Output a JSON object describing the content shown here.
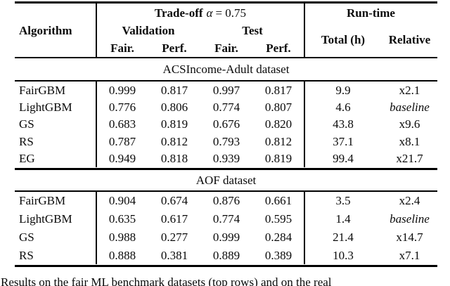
{
  "table": {
    "header": {
      "algorithm": "Algorithm",
      "tradeoff_label": "Trade-off",
      "alpha_symbol": "α",
      "alpha_eq": "= 0.75",
      "validation": "Validation",
      "test": "Test",
      "val_fair": "Fair.",
      "val_perf": "Perf.",
      "test_fair": "Fair.",
      "test_perf": "Perf.",
      "runtime": "Run-time",
      "total": "Total (h)",
      "relative": "Relative"
    },
    "sections": [
      {
        "title": "ACSIncome-Adult dataset",
        "rows": [
          {
            "algorithm": "FairGBM",
            "val_fair": "0.999",
            "val_perf": "0.817",
            "test_fair": "0.997",
            "test_perf": "0.817",
            "total_h": "9.9",
            "relative": "x2.1"
          },
          {
            "algorithm": "LightGBM",
            "val_fair": "0.776",
            "val_perf": "0.806",
            "test_fair": "0.774",
            "test_perf": "0.807",
            "total_h": "4.6",
            "relative": "baseline"
          },
          {
            "algorithm": "GS",
            "val_fair": "0.683",
            "val_perf": "0.819",
            "test_fair": "0.676",
            "test_perf": "0.820",
            "total_h": "43.8",
            "relative": "x9.6"
          },
          {
            "algorithm": "RS",
            "val_fair": "0.787",
            "val_perf": "0.812",
            "test_fair": "0.793",
            "test_perf": "0.812",
            "total_h": "37.1",
            "relative": "x8.1"
          },
          {
            "algorithm": "EG",
            "val_fair": "0.949",
            "val_perf": "0.818",
            "test_fair": "0.939",
            "test_perf": "0.819",
            "total_h": "99.4",
            "relative": "x21.7"
          }
        ]
      },
      {
        "title": "AOF dataset",
        "rows": [
          {
            "algorithm": "FairGBM",
            "val_fair": "0.904",
            "val_perf": "0.674",
            "test_fair": "0.876",
            "test_perf": "0.661",
            "total_h": "3.5",
            "relative": "x2.4"
          },
          {
            "algorithm": "LightGBM",
            "val_fair": "0.635",
            "val_perf": "0.617",
            "test_fair": "0.774",
            "test_perf": "0.595",
            "total_h": "1.4",
            "relative": "baseline"
          },
          {
            "algorithm": "GS",
            "val_fair": "0.988",
            "val_perf": "0.277",
            "test_fair": "0.999",
            "test_perf": "0.284",
            "total_h": "21.4",
            "relative": "x14.7"
          },
          {
            "algorithm": "RS",
            "val_fair": "0.888",
            "val_perf": "0.381",
            "test_fair": "0.889",
            "test_perf": "0.389",
            "total_h": "10.3",
            "relative": "x7.1"
          }
        ]
      }
    ]
  },
  "caption": {
    "text": "Results on the fair ML benchmark datasets (top rows) and on the real"
  }
}
